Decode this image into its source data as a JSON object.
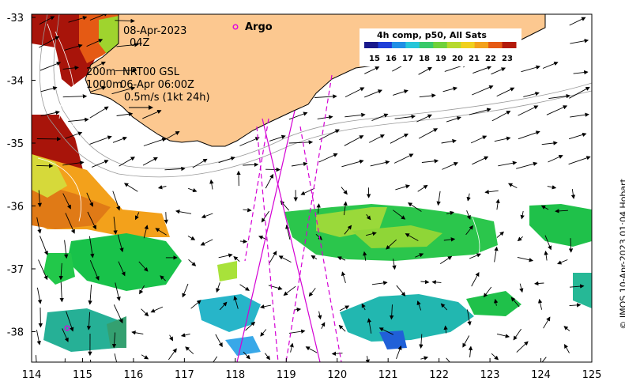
{
  "map": {
    "datetime_date": "08-Apr-2023",
    "datetime_hour": "04Z",
    "argo_label": "Argo",
    "legend_title": "4h comp, p50, All Sats",
    "colorbar_ticks": [
      "15",
      "16",
      "17",
      "18",
      "19",
      "20",
      "21",
      "22",
      "23"
    ],
    "colorbar_colors": [
      "#1a1a8c",
      "#1f3fd8",
      "#1f8fe6",
      "#27c6d9",
      "#39c96a",
      "#6fd13a",
      "#b7d92e",
      "#f0d01e",
      "#f3a11b",
      "#e55a14",
      "#b31a0a"
    ],
    "contour_200": "200m",
    "contour_1000": "1000m",
    "current_source": "NRT00 GSL",
    "current_time": "06-Apr 06:00Z",
    "scale_label": "0.5m/s (1kt 24h)",
    "credit": "© IMOS 10-Apr-2023 01:04 Hobart",
    "colors": {
      "land": "#fcc890",
      "track": "#d400d4",
      "argo": "#e000e0"
    },
    "x_ticks": [
      "114",
      "115",
      "116",
      "117",
      "118",
      "119",
      "120",
      "121",
      "122",
      "123",
      "124",
      "125"
    ],
    "y_ticks": [
      "-33",
      "-34",
      "-35",
      "-36",
      "-37",
      "-38"
    ]
  }
}
